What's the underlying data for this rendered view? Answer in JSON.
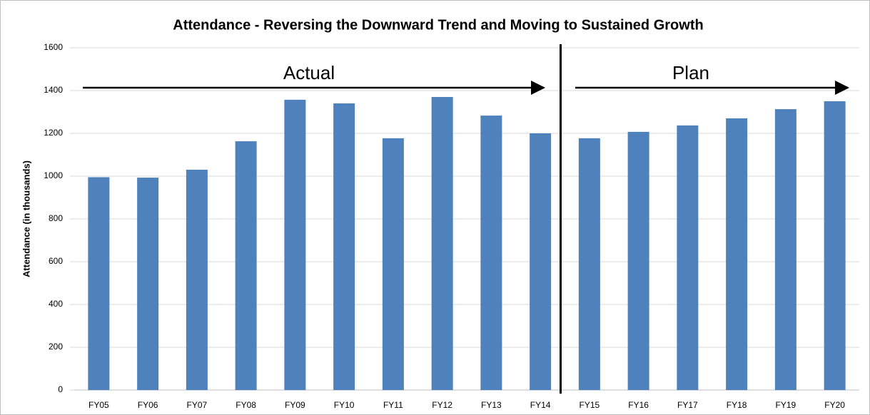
{
  "chart_data": {
    "type": "bar",
    "title": "Attendance - Reversing the Downward Trend and Moving to Sustained Growth",
    "y_label": "Attendance (in thousands)",
    "annotations": [
      "Actual",
      "Plan"
    ],
    "categories": [
      "FY05",
      "FY06",
      "FY07",
      "FY08",
      "FY09",
      "FY10",
      "FY11",
      "FY12",
      "FY13",
      "FY14",
      "FY15",
      "FY16",
      "FY17",
      "FY18",
      "FY19",
      "FY20"
    ],
    "values": [
      995,
      993,
      1030,
      1163,
      1357,
      1340,
      1177,
      1370,
      1283,
      1200,
      1177,
      1207,
      1237,
      1270,
      1313,
      1350
    ],
    "color": "#4f81bd",
    "ylim": [
      0,
      1600
    ],
    "yticks": [
      0,
      200,
      400,
      600,
      800,
      1000,
      1200,
      1400,
      1600
    ],
    "grid": true
  }
}
